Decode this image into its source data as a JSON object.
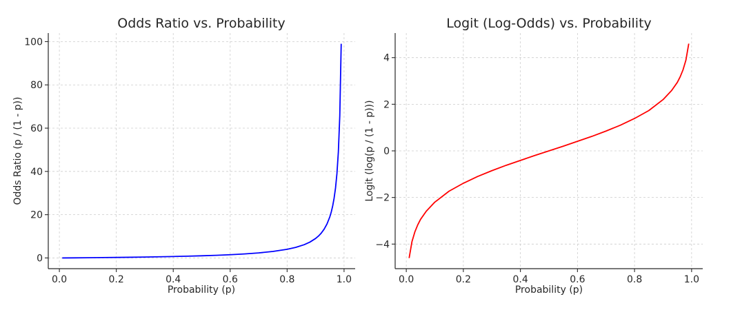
{
  "chart_data": [
    {
      "type": "line",
      "title": "Odds Ratio vs. Probability",
      "xlabel": "Probability (p)",
      "ylabel": "Odds Ratio (p / (1 - p))",
      "xlim": [
        -0.039,
        1.039
      ],
      "ylim": [
        -4.95,
        103.95
      ],
      "x_ticks": [
        0.0,
        0.2,
        0.4,
        0.6,
        0.8,
        1.0
      ],
      "x_tick_labels": [
        "0.0",
        "0.2",
        "0.4",
        "0.6",
        "0.8",
        "1.0"
      ],
      "y_ticks": [
        0,
        20,
        40,
        60,
        80,
        100
      ],
      "y_tick_labels": [
        "0",
        "20",
        "40",
        "60",
        "80",
        "100"
      ],
      "grid": true,
      "color": "#0000ff",
      "series": [
        {
          "x": [
            0.01,
            0.05,
            0.1,
            0.15,
            0.2,
            0.25,
            0.3,
            0.35,
            0.4,
            0.45,
            0.5,
            0.55,
            0.6,
            0.65,
            0.7,
            0.75,
            0.8,
            0.83,
            0.86,
            0.88,
            0.9,
            0.91,
            0.92,
            0.93,
            0.94,
            0.95,
            0.955,
            0.96,
            0.965,
            0.97,
            0.975,
            0.98,
            0.985,
            0.99
          ],
          "y": [
            0.01,
            0.05,
            0.11,
            0.18,
            0.25,
            0.33,
            0.43,
            0.54,
            0.67,
            0.82,
            1.0,
            1.22,
            1.5,
            1.86,
            2.33,
            3.0,
            4.0,
            4.88,
            6.14,
            7.33,
            9.0,
            10.1,
            11.5,
            13.3,
            15.7,
            19.0,
            21.2,
            24.0,
            27.6,
            32.3,
            39.0,
            49.0,
            65.7,
            99.0
          ]
        }
      ]
    },
    {
      "type": "line",
      "title": "Logit (Log-Odds) vs. Probability",
      "xlabel": "Probability (p)",
      "ylabel": "Logit (log(p / (1 - p)))",
      "xlim": [
        -0.039,
        1.039
      ],
      "ylim": [
        -5.055,
        5.055
      ],
      "x_ticks": [
        0.0,
        0.2,
        0.4,
        0.6,
        0.8,
        1.0
      ],
      "x_tick_labels": [
        "0.0",
        "0.2",
        "0.4",
        "0.6",
        "0.8",
        "1.0"
      ],
      "y_ticks": [
        -4,
        -2,
        0,
        2,
        4
      ],
      "y_tick_labels": [
        "−4",
        "−2",
        "0",
        "2",
        "4"
      ],
      "grid": true,
      "color": "#ff0000",
      "series": [
        {
          "x": [
            0.01,
            0.02,
            0.03,
            0.04,
            0.05,
            0.07,
            0.1,
            0.15,
            0.2,
            0.25,
            0.3,
            0.35,
            0.4,
            0.45,
            0.5,
            0.55,
            0.6,
            0.65,
            0.7,
            0.75,
            0.8,
            0.85,
            0.9,
            0.93,
            0.95,
            0.96,
            0.97,
            0.98,
            0.99
          ],
          "y": [
            -4.6,
            -3.89,
            -3.48,
            -3.18,
            -2.94,
            -2.59,
            -2.2,
            -1.73,
            -1.39,
            -1.1,
            -0.85,
            -0.62,
            -0.41,
            -0.2,
            0.0,
            0.2,
            0.41,
            0.62,
            0.85,
            1.1,
            1.39,
            1.73,
            2.2,
            2.59,
            2.94,
            3.18,
            3.48,
            3.89,
            4.6
          ]
        }
      ]
    }
  ]
}
